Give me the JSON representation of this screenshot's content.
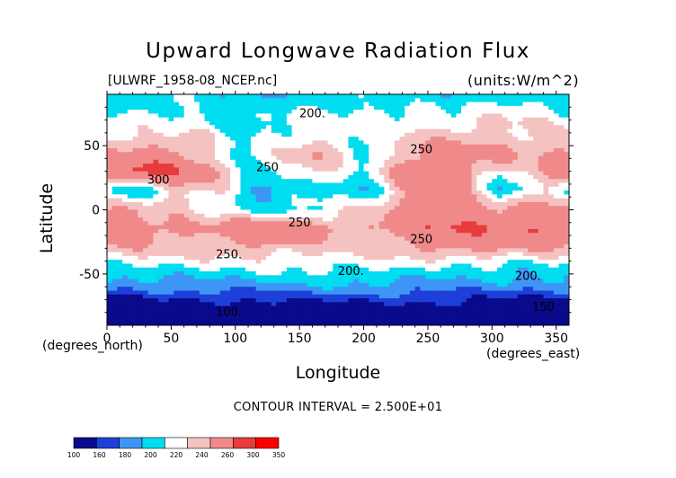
{
  "chart_data": {
    "type": "heatmap",
    "title": "Upward Longwave Radiation Flux",
    "subtitle_left": "[ULWRF_1958-08_NCEP.nc]",
    "subtitle_right": "(units:W/m^2)",
    "xlabel": "Longitude",
    "xunits": "(degrees_east)",
    "ylabel": "Latitude",
    "yunits": "(degrees_north)",
    "xlim": [
      0,
      360
    ],
    "ylim": [
      -90,
      90
    ],
    "xticks": [
      0,
      50,
      100,
      150,
      200,
      250,
      300,
      350
    ],
    "yticks": [
      -50,
      0,
      50
    ],
    "contour_interval_text": "CONTOUR INTERVAL = 2.500E+01",
    "contour_labels": [
      {
        "text": "200.",
        "lon": 160,
        "lat": 75
      },
      {
        "text": "250",
        "lon": 245,
        "lat": 47
      },
      {
        "text": "250",
        "lon": 125,
        "lat": 33
      },
      {
        "text": "300",
        "lon": 40,
        "lat": 23
      },
      {
        "text": "250",
        "lon": 150,
        "lat": -10
      },
      {
        "text": "250",
        "lon": 245,
        "lat": -23
      },
      {
        "text": "250.",
        "lon": 95,
        "lat": -35
      },
      {
        "text": "200.",
        "lon": 190,
        "lat": -48
      },
      {
        "text": "200.",
        "lon": 328,
        "lat": -52
      },
      {
        "text": "100.",
        "lon": 95,
        "lat": -80
      },
      {
        "text": "150",
        "lon": 340,
        "lat": -76
      }
    ],
    "colorbar": {
      "levels": [
        100,
        160,
        180,
        200,
        220,
        240,
        260,
        300,
        350
      ],
      "colors": [
        "#0a0a8c",
        "#1f3fd9",
        "#3d96f5",
        "#00dcf0",
        "#ffffff",
        "#f5c2c2",
        "#f08a8a",
        "#e63c3c",
        "#ff0000"
      ]
    },
    "field": {
      "lat_bands": [
        {
          "lat": 90,
          "values": [
            210,
            210,
            215,
            215,
            205,
            200,
            200,
            205,
            205,
            210,
            210,
            210,
            205,
            200,
            200,
            205,
            210,
            215,
            215,
            210,
            210
          ]
        },
        {
          "lat": 75,
          "values": [
            215,
            220,
            225,
            225,
            220,
            210,
            205,
            215,
            220,
            225,
            225,
            225,
            230,
            230,
            225,
            220,
            225,
            235,
            235,
            230,
            220
          ]
        },
        {
          "lat": 60,
          "values": [
            240,
            235,
            230,
            235,
            240,
            225,
            215,
            225,
            230,
            230,
            225,
            220,
            225,
            240,
            245,
            250,
            250,
            245,
            245,
            240,
            240
          ]
        },
        {
          "lat": 45,
          "values": [
            265,
            270,
            275,
            270,
            250,
            225,
            215,
            225,
            250,
            260,
            245,
            225,
            230,
            255,
            270,
            275,
            270,
            265,
            260,
            260,
            265
          ]
        },
        {
          "lat": 30,
          "values": [
            285,
            305,
            310,
            305,
            280,
            250,
            220,
            220,
            235,
            245,
            230,
            215,
            240,
            285,
            300,
            295,
            260,
            235,
            240,
            270,
            285
          ]
        },
        {
          "lat": 15,
          "values": [
            210,
            200,
            215,
            250,
            245,
            240,
            200,
            190,
            205,
            220,
            210,
            205,
            225,
            265,
            280,
            285,
            240,
            195,
            215,
            250,
            210
          ]
        },
        {
          "lat": 0,
          "values": [
            260,
            255,
            250,
            245,
            230,
            225,
            220,
            215,
            215,
            220,
            230,
            240,
            255,
            270,
            285,
            290,
            280,
            265,
            265,
            270,
            265
          ]
        },
        {
          "lat": -15,
          "values": [
            285,
            280,
            275,
            270,
            265,
            275,
            290,
            300,
            290,
            280,
            270,
            260,
            270,
            285,
            295,
            300,
            300,
            295,
            300,
            305,
            290
          ]
        },
        {
          "lat": -30,
          "values": [
            255,
            255,
            250,
            250,
            250,
            255,
            260,
            255,
            250,
            245,
            245,
            245,
            250,
            255,
            265,
            270,
            270,
            265,
            260,
            260,
            255
          ]
        },
        {
          "lat": -45,
          "values": [
            220,
            220,
            220,
            220,
            220,
            220,
            220,
            225,
            225,
            225,
            225,
            225,
            225,
            220,
            215,
            210,
            215,
            215,
            210,
            215,
            220
          ]
        },
        {
          "lat": -60,
          "values": [
            185,
            185,
            185,
            190,
            190,
            190,
            190,
            190,
            195,
            195,
            195,
            195,
            195,
            195,
            190,
            190,
            190,
            190,
            185,
            185,
            185
          ]
        },
        {
          "lat": -75,
          "values": [
            135,
            135,
            140,
            140,
            145,
            145,
            150,
            150,
            150,
            150,
            150,
            150,
            150,
            150,
            150,
            150,
            150,
            145,
            140,
            140,
            135
          ]
        },
        {
          "lat": -90,
          "values": [
            115,
            115,
            115,
            115,
            115,
            115,
            115,
            115,
            115,
            115,
            115,
            115,
            115,
            115,
            115,
            115,
            115,
            115,
            115,
            115,
            115
          ]
        }
      ],
      "lon_step": 18
    }
  }
}
